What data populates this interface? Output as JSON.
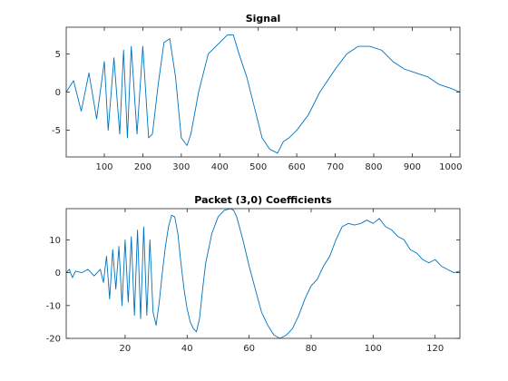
{
  "colors": {
    "line": "#0072BD",
    "axes": "#262626",
    "background": "#ffffff"
  },
  "chart_data": [
    {
      "type": "line",
      "title": "Signal",
      "xlabel": "",
      "ylabel": "",
      "xlim": [
        1,
        1024
      ],
      "ylim": [
        -8.5,
        8.5
      ],
      "xticks": [
        100,
        200,
        300,
        400,
        500,
        600,
        700,
        800,
        900,
        1000
      ],
      "yticks": [
        -5,
        0,
        5
      ],
      "grid": false,
      "series": [
        {
          "x": [
            1,
            20,
            40,
            60,
            80,
            100,
            110,
            125,
            140,
            150,
            160,
            170,
            185,
            200,
            215,
            225,
            240,
            255,
            270,
            285,
            300,
            315,
            325,
            345,
            370,
            400,
            420,
            435,
            450,
            470,
            490,
            510,
            530,
            550,
            565,
            580,
            600,
            630,
            660,
            700,
            730,
            760,
            790,
            820,
            850,
            880,
            910,
            940,
            970,
            1000,
            1024
          ],
          "y": [
            0,
            1.5,
            -2.5,
            2.5,
            -3.5,
            4,
            -5,
            4.5,
            -5.5,
            5.5,
            -6,
            6,
            -5.5,
            6,
            -6,
            -5.5,
            1,
            6.5,
            7,
            2,
            -6,
            -7,
            -5.5,
            0,
            5,
            6.5,
            7.5,
            7.5,
            5,
            2,
            -2,
            -6,
            -7.5,
            -8,
            -6.5,
            -6,
            -5,
            -3,
            0,
            3,
            5,
            6,
            6,
            5.5,
            4,
            3,
            2.5,
            2,
            1,
            0.5,
            0
          ]
        }
      ]
    },
    {
      "type": "line",
      "title": "Packet (3,0) Coefficients",
      "xlabel": "",
      "ylabel": "",
      "xlim": [
        1,
        128
      ],
      "ylim": [
        -20,
        19.5
      ],
      "xticks": [
        20,
        40,
        60,
        80,
        100,
        120
      ],
      "yticks": [
        -20,
        -10,
        0,
        10
      ],
      "grid": false,
      "series": [
        {
          "x": [
            1,
            2,
            3,
            4,
            6,
            8,
            10,
            12,
            13,
            14,
            15,
            16,
            17,
            18,
            19,
            20,
            21,
            22,
            23,
            24,
            25,
            26,
            27,
            28,
            29,
            30,
            31,
            32,
            33,
            34,
            35,
            36,
            37,
            38,
            39,
            40,
            41,
            42,
            43,
            44,
            45,
            46,
            48,
            50,
            52,
            54,
            55,
            56,
            58,
            60,
            62,
            64,
            66,
            68,
            70,
            72,
            74,
            76,
            78,
            80,
            82,
            84,
            86,
            88,
            90,
            92,
            94,
            96,
            98,
            100,
            102,
            104,
            106,
            108,
            110,
            112,
            114,
            116,
            118,
            120,
            122,
            124,
            126,
            128
          ],
          "y": [
            0,
            1,
            -1.5,
            0.5,
            0,
            1,
            -1,
            1,
            -3,
            5,
            -8,
            7,
            -5,
            8,
            -10,
            10,
            -9,
            11,
            -13,
            13,
            -14,
            14,
            -13,
            10,
            -12,
            -16,
            -9,
            0,
            8,
            14,
            17.5,
            17,
            12,
            3,
            -5,
            -11,
            -15,
            -17,
            -18,
            -14,
            -5,
            3,
            12,
            17,
            19,
            19.5,
            19,
            17,
            10,
            2,
            -5,
            -12,
            -16,
            -19,
            -20,
            -19,
            -17,
            -13,
            -8,
            -4,
            -2,
            2,
            5,
            10,
            14,
            15,
            14.5,
            15,
            16,
            15,
            16.5,
            14,
            13,
            11,
            10,
            7,
            6,
            4,
            3,
            4,
            2,
            1,
            0,
            0.5
          ]
        }
      ]
    }
  ]
}
